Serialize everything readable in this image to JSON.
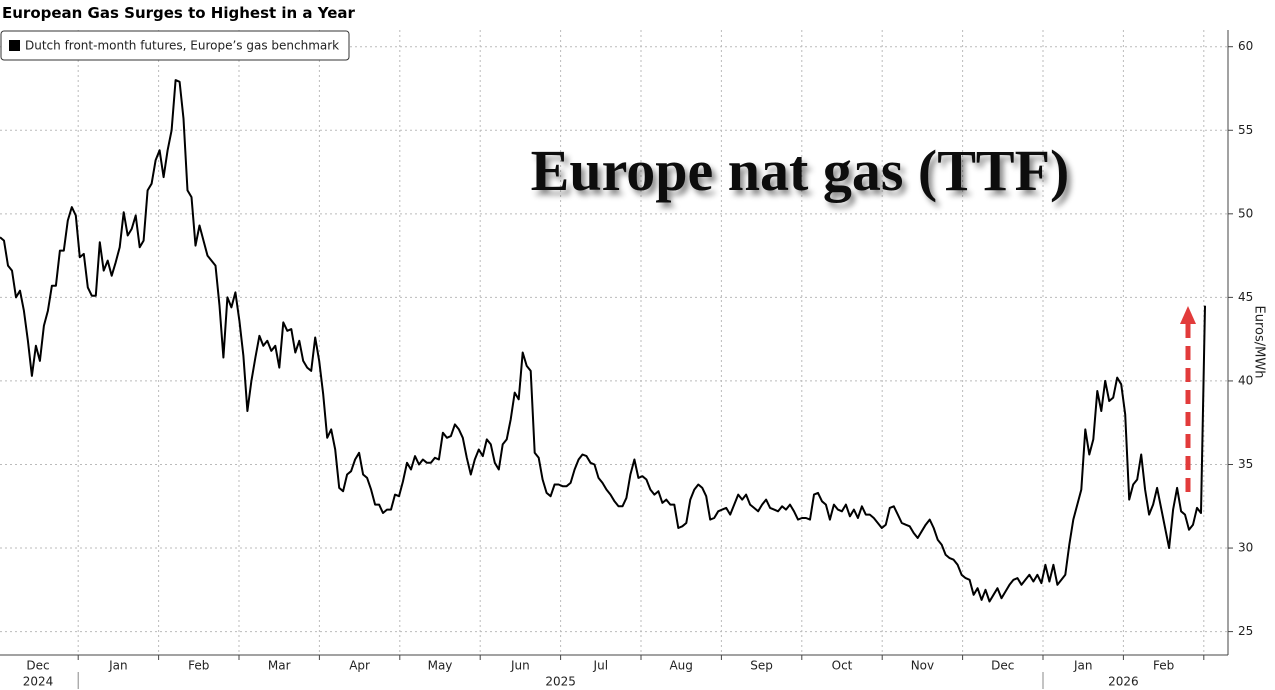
{
  "chart_data": {
    "type": "line",
    "title": "European Gas Surges to Highest in a Year",
    "annotation": "Europe nat gas (TTF)",
    "y_label": "Euros/MWh",
    "months": [
      "Dec",
      "Jan",
      "Feb",
      "Mar",
      "Apr",
      "May",
      "Jun",
      "Jul",
      "Aug",
      "Sep",
      "Oct",
      "Nov",
      "Dec",
      "Jan",
      "Feb"
    ],
    "years": [
      {
        "label": "2024",
        "month": 0
      },
      {
        "label": "2025",
        "month": 6.5
      },
      {
        "label": "2026",
        "month": 13.5
      }
    ],
    "ylim": [
      23.6,
      61
    ],
    "yticks": [
      25,
      30,
      35,
      40,
      45,
      50,
      55,
      60
    ],
    "grid": true,
    "legend": "top-left",
    "series": [
      {
        "name": "Dutch front-month futures, Europe’s gas benchmark",
        "color": "#000000",
        "values": [
          48.6,
          48.4,
          46.9,
          46.6,
          45.0,
          45.4,
          44.2,
          42.4,
          40.3,
          42.1,
          41.2,
          43.3,
          44.2,
          45.7,
          45.7,
          47.8,
          47.8,
          49.6,
          50.4,
          49.9,
          47.4,
          47.6,
          45.6,
          45.1,
          45.1,
          48.3,
          46.6,
          47.2,
          46.3,
          47.1,
          48.0,
          50.1,
          48.7,
          49.1,
          49.9,
          48.0,
          48.4,
          51.4,
          51.8,
          53.2,
          53.8,
          52.2,
          53.8,
          55.0,
          58.0,
          57.9,
          55.7,
          51.4,
          51.0,
          48.1,
          49.3,
          48.4,
          47.5,
          47.2,
          46.9,
          44.5,
          41.4,
          45.0,
          44.4,
          45.3,
          43.6,
          41.5,
          38.2,
          40.0,
          41.4,
          42.7,
          42.1,
          42.4,
          41.8,
          42.1,
          40.8,
          43.5,
          43.0,
          43.1,
          41.7,
          42.4,
          41.2,
          40.8,
          40.6,
          42.6,
          41.2,
          39.2,
          36.6,
          37.1,
          35.9,
          33.6,
          33.4,
          34.4,
          34.6,
          35.3,
          35.7,
          34.4,
          34.2,
          33.5,
          32.6,
          32.6,
          32.1,
          32.3,
          32.3,
          33.2,
          33.1,
          34.0,
          35.1,
          34.7,
          35.5,
          35.0,
          35.3,
          35.1,
          35.1,
          35.4,
          35.3,
          36.9,
          36.6,
          36.7,
          37.4,
          37.1,
          36.6,
          35.4,
          34.4,
          35.3,
          35.9,
          35.5,
          36.5,
          36.2,
          35.1,
          34.7,
          36.2,
          36.5,
          37.7,
          39.3,
          38.9,
          41.7,
          40.9,
          40.6,
          35.7,
          35.4,
          34.1,
          33.3,
          33.1,
          33.8,
          33.8,
          33.7,
          33.7,
          33.9,
          34.7,
          35.3,
          35.6,
          35.5,
          35.1,
          35.0,
          34.2,
          33.9,
          33.5,
          33.2,
          32.8,
          32.5,
          32.5,
          33.0,
          34.4,
          35.3,
          34.2,
          34.3,
          34.1,
          33.5,
          33.2,
          33.4,
          32.7,
          32.9,
          32.6,
          32.6,
          31.2,
          31.3,
          31.5,
          32.9,
          33.5,
          33.8,
          33.6,
          33.1,
          31.7,
          31.8,
          32.2,
          32.3,
          32.4,
          32.0,
          32.6,
          33.2,
          32.9,
          33.2,
          32.6,
          32.4,
          32.2,
          32.6,
          32.9,
          32.4,
          32.3,
          32.2,
          32.5,
          32.3,
          32.6,
          32.2,
          31.7,
          31.8,
          31.8,
          31.7,
          33.2,
          33.3,
          32.8,
          32.6,
          31.7,
          32.6,
          32.3,
          32.2,
          32.6,
          31.9,
          32.3,
          31.8,
          32.5,
          32.0,
          32.0,
          31.8,
          31.5,
          31.2,
          31.4,
          32.4,
          32.5,
          32.0,
          31.5,
          31.4,
          31.3,
          30.9,
          30.6,
          31.0,
          31.4,
          31.7,
          31.2,
          30.5,
          30.2,
          29.6,
          29.4,
          29.3,
          29.0,
          28.4,
          28.2,
          28.1,
          27.2,
          27.6,
          26.9,
          27.5,
          26.8,
          27.2,
          27.6,
          27.0,
          27.4,
          27.8,
          28.1,
          28.2,
          27.8,
          28.1,
          28.4,
          28.0,
          28.4,
          27.9,
          29.0,
          28.0,
          29.0,
          27.8,
          28.1,
          28.4,
          30.2,
          31.7,
          32.6,
          33.5,
          37.1,
          35.6,
          36.5,
          39.4,
          38.2,
          40.0,
          38.8,
          39.0,
          40.2,
          39.8,
          38.0,
          32.9,
          33.8,
          34.1,
          35.6,
          33.5,
          32.0,
          32.6,
          33.6,
          32.4,
          31.2,
          30.0,
          32.3,
          33.6,
          32.2,
          32.0,
          31.1,
          31.4,
          32.4,
          32.1,
          44.5
        ]
      }
    ]
  }
}
